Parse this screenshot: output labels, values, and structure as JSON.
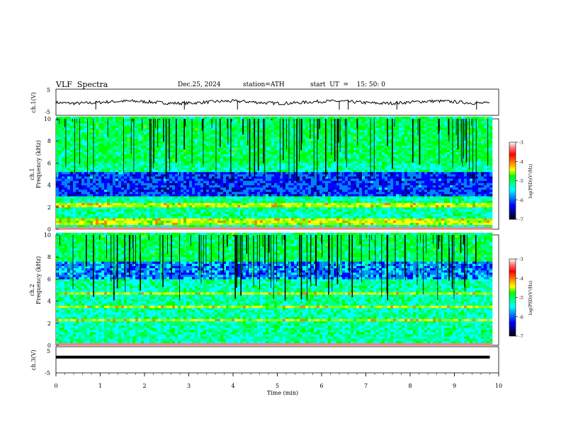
{
  "header": {
    "title": "VLF  Spectra",
    "date": "Dec.25, 2024",
    "station": "station=ATH",
    "start_ut": "start  UT  =    15: 50: 0"
  },
  "chart_data": {
    "type": "heatmap",
    "x": {
      "label": "Time  (min)",
      "range": [
        0,
        10
      ],
      "ticks": [
        0,
        1,
        2,
        3,
        4,
        5,
        6,
        7,
        8,
        9,
        10
      ],
      "data_end": 9.8
    },
    "panels": [
      {
        "id": "ch1-waveform",
        "type": "line",
        "ylabel": "ch.1(V)",
        "ylim": [
          -5,
          5
        ],
        "ytick_labels": [
          "5",
          "-5"
        ],
        "baseline": 0,
        "spike_times_min": [
          0.9,
          2.9,
          4.1,
          6.4,
          6.6,
          7.7,
          9.5
        ]
      },
      {
        "id": "ch1-spectrogram",
        "type": "heatmap",
        "ylabel_top": "ch.1",
        "ylabel": "Frequency  (kHz)",
        "ylim": [
          0,
          10
        ],
        "ytick_labels": [
          "0",
          "2",
          "4",
          "6",
          "8",
          "10"
        ],
        "colorbar": {
          "label": "log(PSD)(V²/Hz)",
          "range": [
            -7,
            -3
          ],
          "tick_labels": [
            "-3",
            "-4",
            "-5",
            "-6",
            "-7"
          ]
        },
        "features": {
          "bright_band_khz": [
            [
              1.8,
              2.3
            ],
            [
              0.4,
              0.9
            ]
          ],
          "quiet_band_khz": [
            [
              3.0,
              5.2
            ]
          ],
          "sferic_activity": "high"
        }
      },
      {
        "id": "ch2-spectrogram",
        "type": "heatmap",
        "ylabel_top": "ch.2",
        "ylabel": "Frequency  (kHz)",
        "ylim": [
          0,
          10
        ],
        "ytick_labels": [
          "0",
          "2",
          "4",
          "6",
          "8",
          "10"
        ],
        "colorbar": {
          "label": "log(PSD)(V²/Hz)",
          "range": [
            -7,
            -3
          ],
          "tick_labels": [
            "-3",
            "-4",
            "-5",
            "-6",
            "-7"
          ]
        },
        "features": {
          "bright_band_khz": [
            [
              2.0,
              2.2
            ],
            [
              3.4,
              3.6
            ],
            [
              4.5,
              4.7
            ]
          ],
          "quiet_band_khz": [
            [
              6.0,
              7.5
            ]
          ],
          "sferic_activity": "high"
        }
      },
      {
        "id": "ch3-waveform",
        "type": "line",
        "ylabel": "ch.3(V)",
        "ylim": [
          -5,
          5
        ],
        "ytick_labels": [
          "5",
          "-5"
        ],
        "baseline": 1.0
      }
    ],
    "colormap": [
      "#000000",
      "#000080",
      "#0000ff",
      "#0080ff",
      "#00ffff",
      "#00ff80",
      "#00ff00",
      "#80ff00",
      "#ffff00",
      "#ff8000",
      "#ff0000",
      "#ff8080",
      "#ffffff"
    ]
  }
}
